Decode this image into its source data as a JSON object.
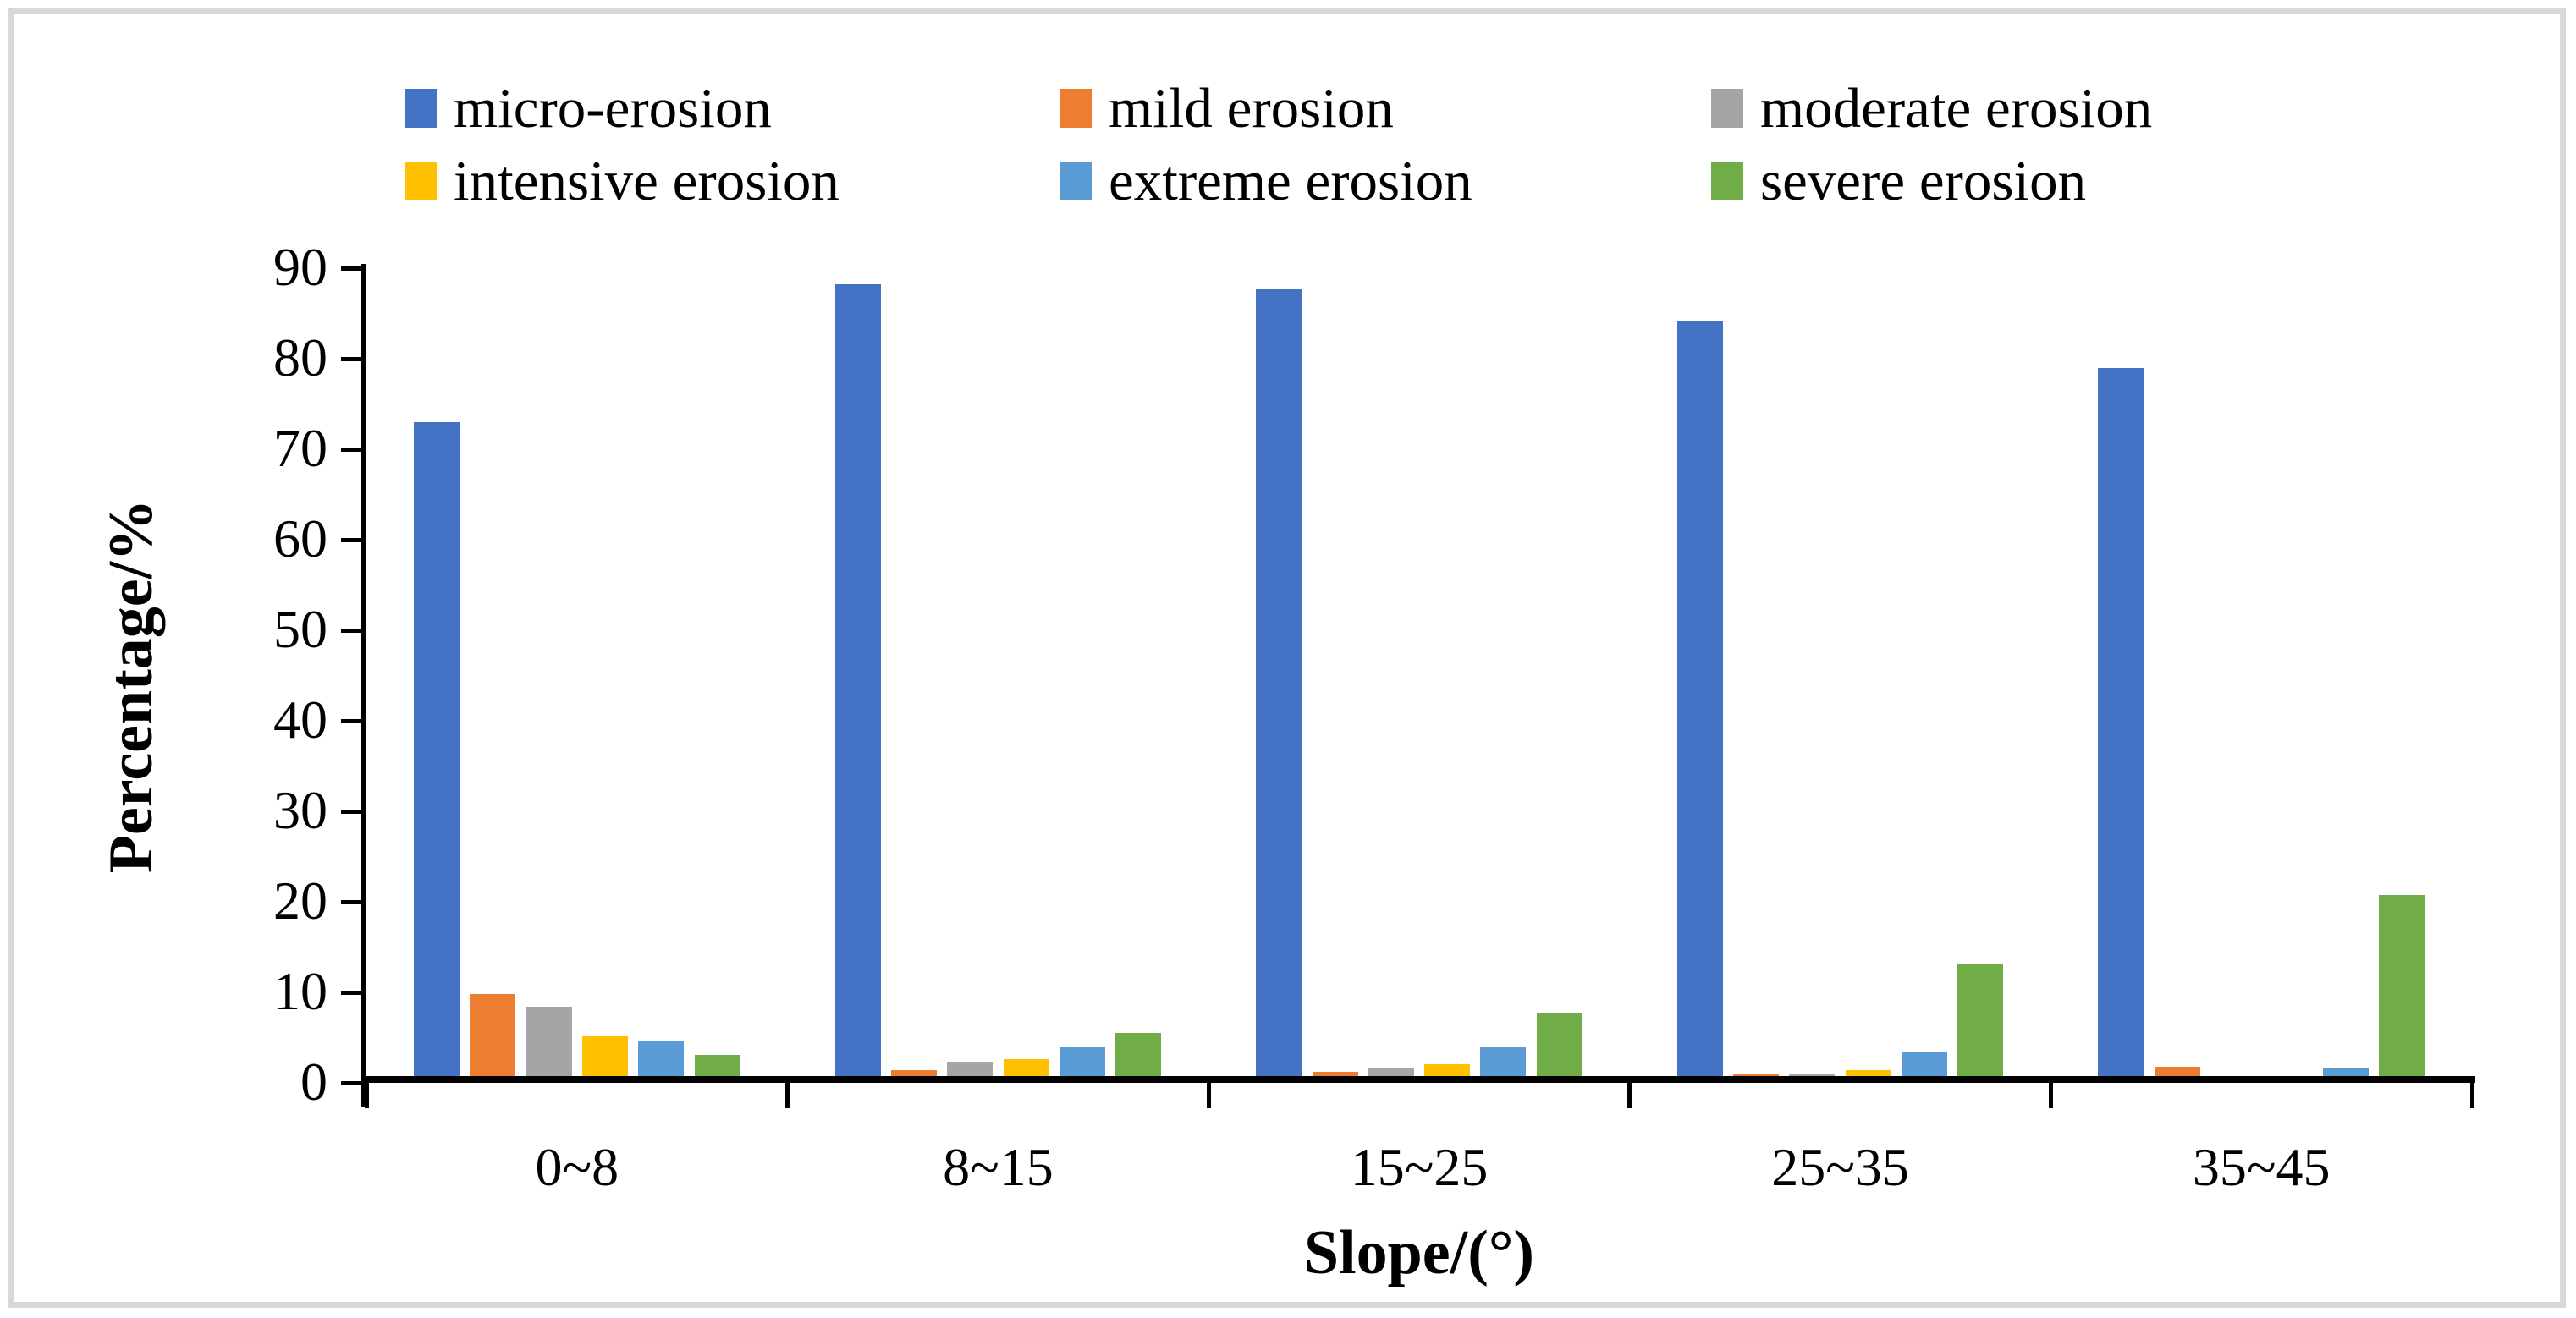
{
  "chart_data": {
    "type": "bar",
    "title": "",
    "xlabel": "Slope/(°)",
    "ylabel": "Percentage/%",
    "categories": [
      "0~8",
      "8~15",
      "15~25",
      "25~35",
      "35~45"
    ],
    "series": [
      {
        "name": "micro-erosion",
        "color": "#4472C4",
        "values": [
          72.2,
          87.5,
          86.9,
          83.5,
          78.2
        ]
      },
      {
        "name": "mild erosion",
        "color": "#ED7D31",
        "values": [
          9.1,
          0.7,
          0.5,
          0.3,
          1.0
        ]
      },
      {
        "name": "moderate erosion",
        "color": "#A5A5A5",
        "values": [
          7.7,
          1.6,
          0.9,
          0.2,
          0
        ]
      },
      {
        "name": "intensive erosion",
        "color": "#FFC000",
        "values": [
          4.4,
          1.9,
          1.3,
          0.7,
          0
        ]
      },
      {
        "name": "extreme erosion",
        "color": "#5B9BD5",
        "values": [
          3.8,
          3.2,
          3.2,
          2.6,
          0.9
        ]
      },
      {
        "name": "severe erosion",
        "color": "#70AD47",
        "values": [
          2.3,
          4.8,
          7.0,
          12.4,
          20.0
        ]
      }
    ],
    "ylim": [
      0,
      90
    ],
    "yticks": [
      0,
      10,
      20,
      30,
      40,
      50,
      60,
      70,
      80,
      90
    ],
    "grid": false,
    "legend_position": "top"
  }
}
